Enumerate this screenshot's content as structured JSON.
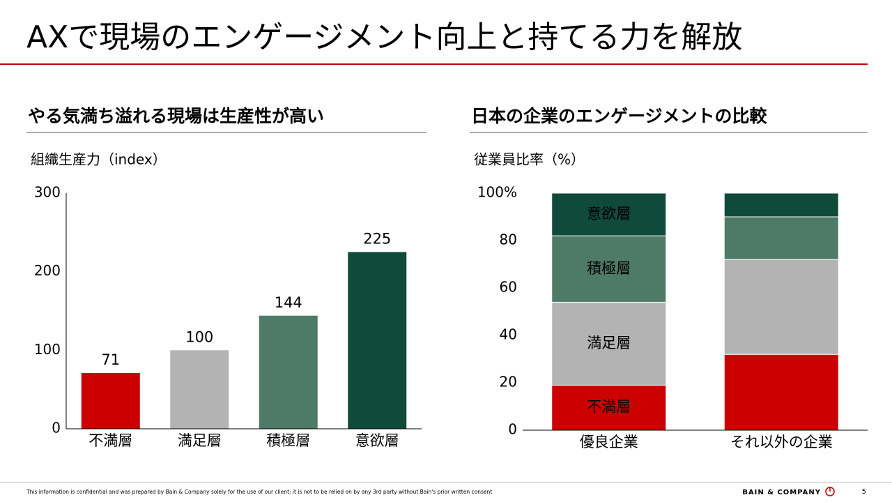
{
  "title": "AXで現場のエンゲージメント向上と持てる力を解放",
  "chart_data": [
    {
      "type": "bar",
      "title": "やる気満ち溢れる現場は生産性が高い",
      "y_label": "組織生産力（index）",
      "categories": [
        "不満層",
        "満足層",
        "積極層",
        "意欲層"
      ],
      "values": [
        71,
        100,
        144,
        225
      ],
      "colors": [
        "#cc0000",
        "#b3b3b3",
        "#4e7a68",
        "#0f4a3a"
      ],
      "ylim": [
        0,
        300
      ],
      "yticks": [
        0,
        100,
        200,
        300
      ],
      "grid": false
    },
    {
      "type": "stacked_bar",
      "title": "日本の企業のエンゲージメントの比較",
      "y_label": "従業員比率（%）",
      "categories": [
        "優良企業",
        "それ以外の企業"
      ],
      "series": [
        {
          "name": "不満層",
          "color": "#cc0000",
          "values": [
            19,
            32
          ]
        },
        {
          "name": "満足層",
          "color": "#b3b3b3",
          "values": [
            35,
            40
          ]
        },
        {
          "name": "積極層",
          "color": "#4e7a68",
          "values": [
            28,
            18
          ]
        },
        {
          "name": "意欲層",
          "color": "#0f4a3a",
          "values": [
            18,
            10
          ]
        }
      ],
      "ylim": [
        0,
        100
      ],
      "yticks": [
        0,
        20,
        40,
        60,
        80,
        {
          "value": 100,
          "label": "100%"
        }
      ],
      "grid": false
    }
  ],
  "footer": "This information is confidential and was prepared by Bain & Company solely for the use of our client; it is not to be relied on by any 3rd party without Bain's prior written consent",
  "logo": "BAIN & COMPANY",
  "page_number": "5"
}
